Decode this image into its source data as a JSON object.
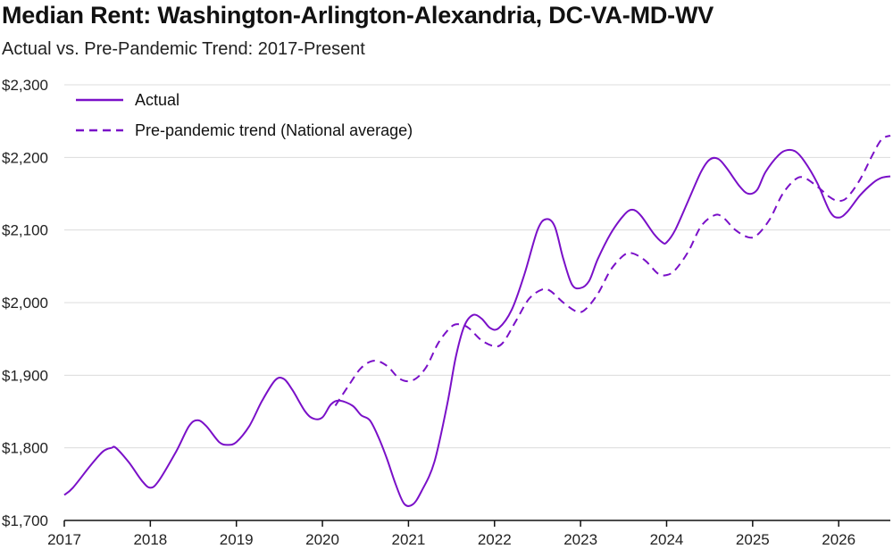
{
  "chart_data": {
    "type": "line",
    "title": "Median Rent: Washington-Arlington-Alexandria, DC-VA-MD-WV",
    "subtitle": "Actual vs. Pre-Pandemic Trend: 2017-Present",
    "xlabel": "",
    "ylabel": "",
    "xlim": [
      2017,
      2026.6
    ],
    "ylim": [
      1700,
      2300
    ],
    "y_ticks": [
      1700,
      1800,
      1900,
      2000,
      2100,
      2200,
      2300
    ],
    "y_tick_labels": [
      "$1,700",
      "$1,800",
      "$1,900",
      "$2,000",
      "$2,100",
      "$2,200",
      "$2,300"
    ],
    "x_ticks": [
      2017,
      2018,
      2019,
      2020,
      2021,
      2022,
      2023,
      2024,
      2025,
      2026
    ],
    "x_tick_labels": [
      "2017",
      "2018",
      "2019",
      "2020",
      "2021",
      "2022",
      "2023",
      "2024",
      "2025",
      "2026"
    ],
    "grid": "horizontal",
    "legend_position": "top-left",
    "series": [
      {
        "name": "Actual",
        "style": "solid",
        "color": "#7a10c8",
        "points": [
          [
            2017.0,
            1735
          ],
          [
            2017.1,
            1745
          ],
          [
            2017.3,
            1775
          ],
          [
            2017.45,
            1795
          ],
          [
            2017.55,
            1800
          ],
          [
            2017.6,
            1800
          ],
          [
            2017.75,
            1780
          ],
          [
            2017.9,
            1755
          ],
          [
            2018.0,
            1745
          ],
          [
            2018.1,
            1755
          ],
          [
            2018.3,
            1795
          ],
          [
            2018.45,
            1830
          ],
          [
            2018.55,
            1838
          ],
          [
            2018.65,
            1830
          ],
          [
            2018.8,
            1808
          ],
          [
            2018.9,
            1804
          ],
          [
            2019.0,
            1808
          ],
          [
            2019.15,
            1830
          ],
          [
            2019.3,
            1865
          ],
          [
            2019.45,
            1893
          ],
          [
            2019.55,
            1895
          ],
          [
            2019.65,
            1880
          ],
          [
            2019.8,
            1850
          ],
          [
            2019.9,
            1840
          ],
          [
            2020.0,
            1842
          ],
          [
            2020.1,
            1860
          ],
          [
            2020.2,
            1865
          ],
          [
            2020.35,
            1858
          ],
          [
            2020.45,
            1845
          ],
          [
            2020.55,
            1838
          ],
          [
            2020.65,
            1815
          ],
          [
            2020.75,
            1785
          ],
          [
            2020.85,
            1750
          ],
          [
            2020.95,
            1723
          ],
          [
            2021.05,
            1722
          ],
          [
            2021.15,
            1740
          ],
          [
            2021.3,
            1780
          ],
          [
            2021.45,
            1860
          ],
          [
            2021.55,
            1925
          ],
          [
            2021.65,
            1968
          ],
          [
            2021.75,
            1983
          ],
          [
            2021.85,
            1978
          ],
          [
            2021.95,
            1965
          ],
          [
            2022.05,
            1965
          ],
          [
            2022.2,
            1990
          ],
          [
            2022.35,
            2040
          ],
          [
            2022.5,
            2100
          ],
          [
            2022.6,
            2115
          ],
          [
            2022.7,
            2105
          ],
          [
            2022.8,
            2060
          ],
          [
            2022.9,
            2025
          ],
          [
            2023.0,
            2020
          ],
          [
            2023.1,
            2030
          ],
          [
            2023.2,
            2060
          ],
          [
            2023.35,
            2095
          ],
          [
            2023.5,
            2120
          ],
          [
            2023.6,
            2128
          ],
          [
            2023.7,
            2120
          ],
          [
            2023.85,
            2095
          ],
          [
            2023.95,
            2083
          ],
          [
            2024.0,
            2083
          ],
          [
            2024.1,
            2100
          ],
          [
            2024.25,
            2140
          ],
          [
            2024.4,
            2180
          ],
          [
            2024.5,
            2197
          ],
          [
            2024.6,
            2198
          ],
          [
            2024.7,
            2185
          ],
          [
            2024.85,
            2160
          ],
          [
            2024.95,
            2150
          ],
          [
            2025.05,
            2155
          ],
          [
            2025.15,
            2180
          ],
          [
            2025.3,
            2203
          ],
          [
            2025.4,
            2210
          ],
          [
            2025.5,
            2208
          ],
          [
            2025.6,
            2195
          ],
          [
            2025.75,
            2165
          ],
          [
            2025.9,
            2125
          ],
          [
            2026.0,
            2117
          ],
          [
            2026.1,
            2125
          ],
          [
            2026.25,
            2148
          ],
          [
            2026.4,
            2165
          ],
          [
            2026.5,
            2172
          ],
          [
            2026.6,
            2174
          ]
        ]
      },
      {
        "name": "Pre-pandemic trend (National average)",
        "style": "dashed",
        "color": "#7a10c8",
        "points": [
          [
            2020.15,
            1858
          ],
          [
            2020.3,
            1885
          ],
          [
            2020.45,
            1910
          ],
          [
            2020.6,
            1920
          ],
          [
            2020.75,
            1913
          ],
          [
            2020.9,
            1895
          ],
          [
            2021.05,
            1893
          ],
          [
            2021.2,
            1910
          ],
          [
            2021.35,
            1945
          ],
          [
            2021.5,
            1967
          ],
          [
            2021.6,
            1970
          ],
          [
            2021.7,
            1965
          ],
          [
            2021.85,
            1948
          ],
          [
            2022.0,
            1940
          ],
          [
            2022.1,
            1945
          ],
          [
            2022.25,
            1975
          ],
          [
            2022.4,
            2005
          ],
          [
            2022.55,
            2018
          ],
          [
            2022.65,
            2016
          ],
          [
            2022.8,
            2000
          ],
          [
            2022.95,
            1988
          ],
          [
            2023.05,
            1990
          ],
          [
            2023.2,
            2012
          ],
          [
            2023.35,
            2045
          ],
          [
            2023.5,
            2065
          ],
          [
            2023.6,
            2068
          ],
          [
            2023.75,
            2058
          ],
          [
            2023.9,
            2040
          ],
          [
            2024.0,
            2038
          ],
          [
            2024.1,
            2045
          ],
          [
            2024.25,
            2070
          ],
          [
            2024.4,
            2105
          ],
          [
            2024.55,
            2120
          ],
          [
            2024.65,
            2118
          ],
          [
            2024.8,
            2100
          ],
          [
            2024.95,
            2090
          ],
          [
            2025.05,
            2093
          ],
          [
            2025.2,
            2115
          ],
          [
            2025.35,
            2150
          ],
          [
            2025.5,
            2170
          ],
          [
            2025.6,
            2172
          ],
          [
            2025.75,
            2160
          ],
          [
            2025.9,
            2145
          ],
          [
            2026.0,
            2140
          ],
          [
            2026.1,
            2145
          ],
          [
            2026.25,
            2170
          ],
          [
            2026.4,
            2205
          ],
          [
            2026.5,
            2225
          ],
          [
            2026.6,
            2230
          ]
        ]
      }
    ]
  }
}
